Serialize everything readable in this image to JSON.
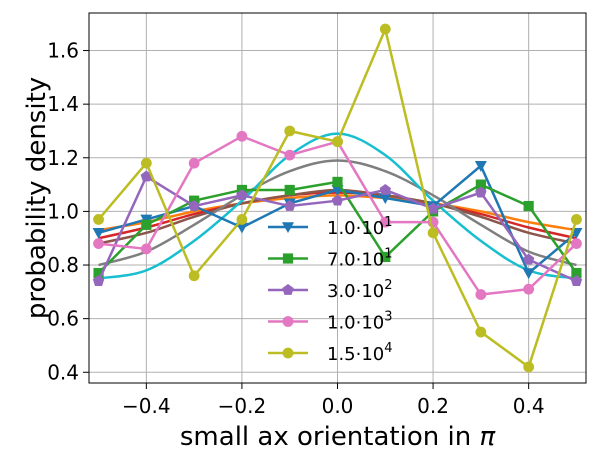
{
  "chart_data": {
    "type": "line",
    "title": "",
    "xlabel": "small ax orientation  in π",
    "ylabel": "probability density",
    "xlim": [
      -0.52,
      0.52
    ],
    "ylim": [
      0.36,
      1.74
    ],
    "x_ticks": [
      -0.4,
      -0.2,
      0.0,
      0.2,
      0.4
    ],
    "x_tick_labels": [
      "−0.4",
      "−0.2",
      "0.0",
      "0.2",
      "0.4"
    ],
    "y_ticks": [
      0.4,
      0.6,
      0.8,
      1.0,
      1.2,
      1.4,
      1.6
    ],
    "y_tick_labels": [
      "0.4",
      "0.6",
      "0.8",
      "1.0",
      "1.2",
      "1.4",
      "1.6"
    ],
    "grid": true,
    "legend_position": "lower-center",
    "x": [
      -0.5,
      -0.4,
      -0.3,
      -0.2,
      -0.1,
      0.0,
      0.1,
      0.2,
      0.3,
      0.4,
      0.5
    ],
    "series": [
      {
        "name": "1.0·10^1",
        "color": "#1f77b4",
        "marker": "triangle-down",
        "values": [
          0.92,
          0.97,
          1.02,
          0.94,
          1.03,
          1.08,
          1.05,
          1.02,
          1.17,
          0.77,
          0.92
        ]
      },
      {
        "name": "7.0·10^1",
        "color": "#2ca02c",
        "marker": "square",
        "values": [
          0.77,
          0.95,
          1.04,
          1.08,
          1.08,
          1.11,
          0.83,
          1.0,
          1.1,
          1.02,
          0.77
        ]
      },
      {
        "name": "3.0·10^2",
        "color": "#9467bd",
        "marker": "pentagon",
        "values": [
          0.74,
          1.13,
          1.02,
          1.06,
          1.02,
          1.04,
          1.08,
          1.01,
          1.07,
          0.82,
          0.74
        ]
      },
      {
        "name": "1.0·10^3",
        "color": "#e377c2",
        "marker": "circle",
        "values": [
          0.88,
          0.86,
          1.18,
          1.28,
          1.21,
          1.26,
          0.96,
          0.96,
          0.69,
          0.71,
          0.88
        ]
      },
      {
        "name": "1.5·10^4",
        "color": "#bcbd22",
        "marker": "circle",
        "values": [
          0.97,
          1.18,
          0.76,
          0.97,
          1.3,
          1.26,
          1.68,
          0.92,
          0.55,
          0.42,
          0.97
        ]
      }
    ],
    "fit_curves": [
      {
        "color": "#ff7f0e",
        "values": [
          0.93,
          0.96,
          1.0,
          1.03,
          1.05,
          1.06,
          1.05,
          1.03,
          1.0,
          0.96,
          0.93
        ]
      },
      {
        "color": "#d62728",
        "values": [
          0.9,
          0.94,
          0.99,
          1.03,
          1.06,
          1.07,
          1.06,
          1.03,
          0.99,
          0.94,
          0.9
        ]
      },
      {
        "color": "#8c564b",
        "values": [
          0.88,
          0.92,
          0.98,
          1.03,
          1.06,
          1.08,
          1.06,
          1.03,
          0.98,
          0.92,
          0.88
        ]
      },
      {
        "color": "#7f7f7f",
        "values": [
          0.8,
          0.85,
          0.95,
          1.06,
          1.15,
          1.19,
          1.15,
          1.06,
          0.95,
          0.85,
          0.8
        ]
      },
      {
        "color": "#17becf",
        "values": [
          0.75,
          0.78,
          0.89,
          1.04,
          1.21,
          1.29,
          1.21,
          1.04,
          0.89,
          0.78,
          0.75
        ]
      }
    ]
  }
}
